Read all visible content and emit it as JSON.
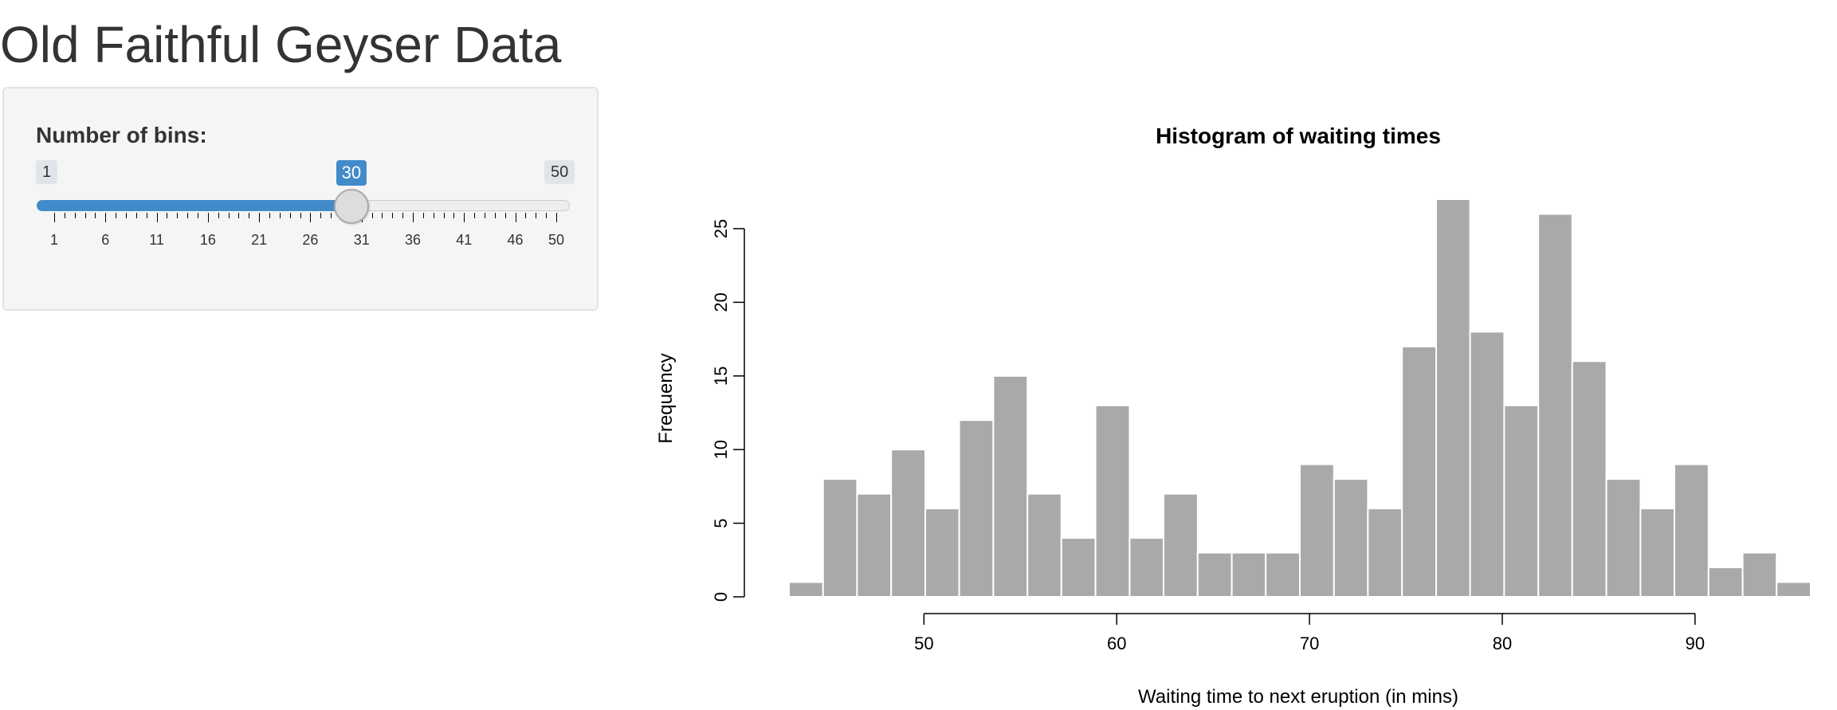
{
  "page": {
    "title": "Old Faithful Geyser Data"
  },
  "sidebar": {
    "bins_label": "Number of bins:",
    "slider": {
      "min": 1,
      "max": 50,
      "value": 30,
      "min_label": "1",
      "max_label": "50",
      "value_label": "30",
      "tick_labels": [
        "1",
        "6",
        "11",
        "16",
        "21",
        "26",
        "31",
        "36",
        "41",
        "46",
        "50"
      ],
      "fill_color": "#428bca"
    }
  },
  "chart_data": {
    "type": "bar",
    "title": "Histogram of waiting times",
    "xlabel": "Waiting time to next eruption (in mins)",
    "ylabel": "Frequency",
    "bin_edges": [
      43,
      44.77,
      46.53,
      48.3,
      50.07,
      51.83,
      53.6,
      55.37,
      57.13,
      58.9,
      60.67,
      62.43,
      64.2,
      65.97,
      67.73,
      69.5,
      71.27,
      73.03,
      74.8,
      76.57,
      78.33,
      80.1,
      81.87,
      83.63,
      85.4,
      87.17,
      88.93,
      90.7,
      92.47,
      94.23,
      96
    ],
    "values": [
      1,
      8,
      7,
      10,
      6,
      12,
      15,
      7,
      4,
      13,
      4,
      7,
      3,
      3,
      3,
      9,
      8,
      6,
      17,
      27,
      18,
      13,
      26,
      16,
      8,
      6,
      9,
      2,
      3,
      1
    ],
    "x_ticks": [
      50,
      60,
      70,
      80,
      90
    ],
    "y_ticks": [
      0,
      5,
      10,
      15,
      20,
      25
    ],
    "xlim": [
      43,
      96
    ],
    "ylim": [
      0,
      27
    ],
    "bar_color": "#a9a9a9",
    "bar_border_color": "#ffffff",
    "grid": false,
    "legend": "none"
  }
}
